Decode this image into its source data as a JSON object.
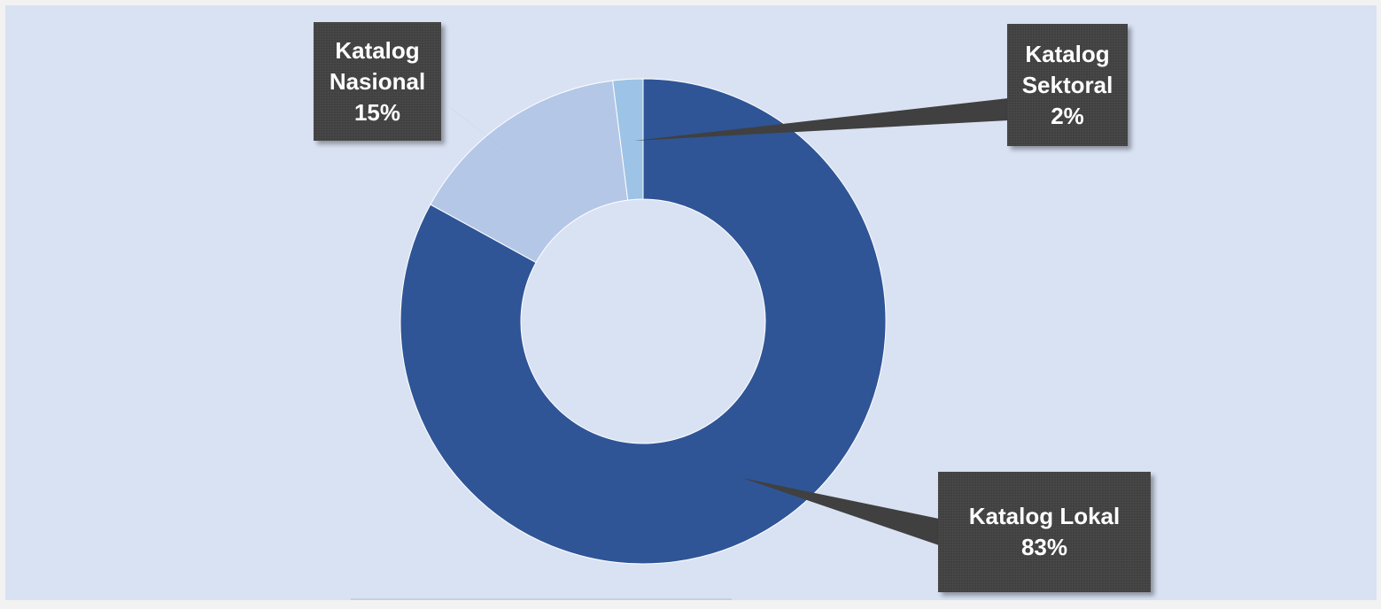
{
  "chart_data": {
    "type": "pie",
    "variant": "doughnut",
    "title": "",
    "grid": false,
    "legend": "none",
    "slices": [
      {
        "label": "Katalog Lokal",
        "value": 83,
        "display": "83%",
        "color": "#2f5597"
      },
      {
        "label": "Katalog Nasional",
        "value": 15,
        "display": "15%",
        "color": "#b4c7e7"
      },
      {
        "label": "Katalog Sektoral",
        "value": 2,
        "display": "2%",
        "color": "#9dc3e6"
      }
    ],
    "label_lines": {
      "nasional": [
        "Katalog",
        "Nasional",
        "15%"
      ],
      "sektoral": [
        "Katalog",
        "Sektoral",
        "2%"
      ],
      "lokal": [
        "Katalog Lokal",
        "83%"
      ]
    },
    "colors": {
      "background": "#d9e2f3",
      "label_box": "#404040",
      "label_text": "#ffffff",
      "callout": "#404040"
    }
  }
}
